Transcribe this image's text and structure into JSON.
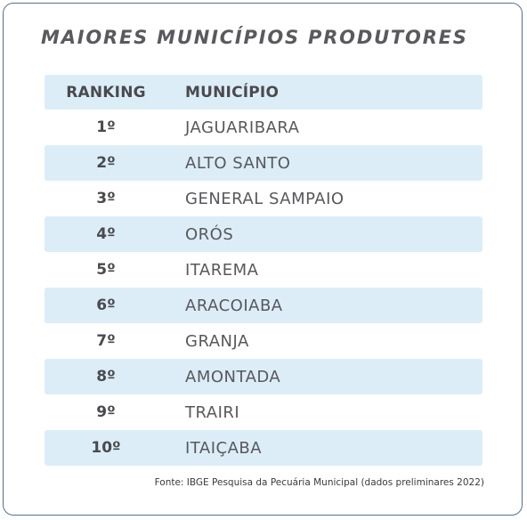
{
  "title": "MAIORES MUNICÍPIOS PRODUTORES",
  "table": {
    "headers": {
      "ranking": "RANKING",
      "municipio": "MUNICÍPIO"
    },
    "rows": [
      {
        "rank": "1º",
        "municipio": "JAGUARIBARA"
      },
      {
        "rank": "2º",
        "municipio": "ALTO SANTO"
      },
      {
        "rank": "3º",
        "municipio": "GENERAL SAMPAIO"
      },
      {
        "rank": "4º",
        "municipio": "ORÓS"
      },
      {
        "rank": "5º",
        "municipio": "ITAREMA"
      },
      {
        "rank": "6º",
        "municipio": "ARACOIABA"
      },
      {
        "rank": "7º",
        "municipio": "GRANJA"
      },
      {
        "rank": "8º",
        "municipio": "AMONTADA"
      },
      {
        "rank": "9º",
        "municipio": "TRAIRI"
      },
      {
        "rank": "10º",
        "municipio": "ITAIÇABA"
      }
    ]
  },
  "source": "Fonte: IBGE Pesquisa da Pecuária Municipal (dados preliminares 2022)",
  "colors": {
    "row_shade": "#dcedf8",
    "border": "#5a6e8c",
    "text": "#58585c"
  }
}
